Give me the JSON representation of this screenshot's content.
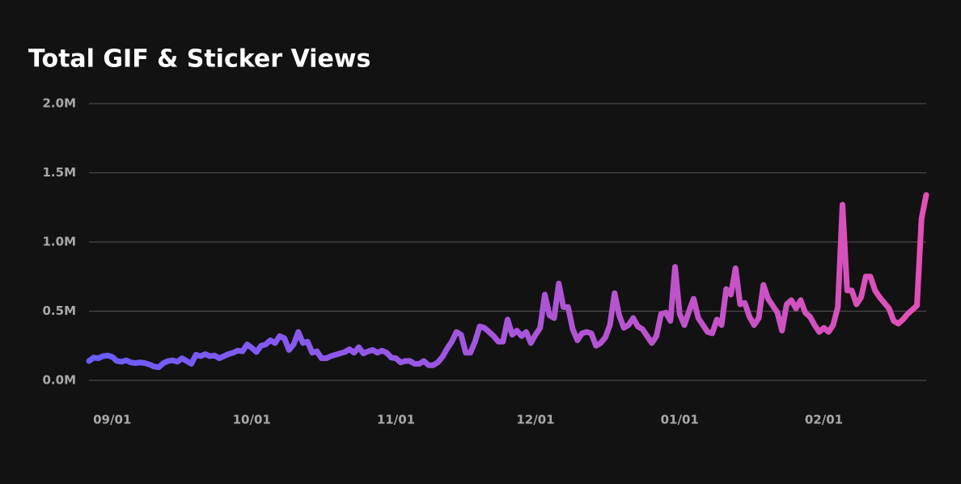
{
  "chart_data": {
    "type": "line",
    "title": "Total GIF & Sticker Views",
    "categories": [
      "08/27",
      "08/28",
      "08/29",
      "08/30",
      "08/31",
      "09/01",
      "09/02",
      "09/03",
      "09/04",
      "09/05",
      "09/06",
      "09/07",
      "09/08",
      "09/09",
      "09/10",
      "09/11",
      "09/12",
      "09/13",
      "09/14",
      "09/15",
      "09/16",
      "09/17",
      "09/18",
      "09/19",
      "09/20",
      "09/21",
      "09/22",
      "09/23",
      "09/24",
      "09/25",
      "09/26",
      "09/27",
      "09/28",
      "09/29",
      "09/30",
      "10/01",
      "10/02",
      "10/03",
      "10/04",
      "10/05",
      "10/06",
      "10/07",
      "10/08",
      "10/09",
      "10/10",
      "10/11",
      "10/12",
      "10/13",
      "10/14",
      "10/15",
      "10/16",
      "10/17",
      "10/18",
      "10/19",
      "10/20",
      "10/21",
      "10/22",
      "10/23",
      "10/24",
      "10/25",
      "10/26",
      "10/27",
      "10/28",
      "10/29",
      "10/30",
      "10/31",
      "11/01",
      "11/02",
      "11/03",
      "11/04",
      "11/05",
      "11/06",
      "11/07",
      "11/08",
      "11/09",
      "11/10",
      "11/11",
      "11/12",
      "11/13",
      "11/14",
      "11/15",
      "11/16",
      "11/17",
      "11/18",
      "11/19",
      "11/20",
      "11/21",
      "11/22",
      "11/23",
      "11/24",
      "11/25",
      "11/26",
      "11/27",
      "11/28",
      "11/29",
      "11/30",
      "12/01",
      "12/02",
      "12/03",
      "12/04",
      "12/05",
      "12/06",
      "12/07",
      "12/08",
      "12/09",
      "12/10",
      "12/11",
      "12/12",
      "12/13",
      "12/14",
      "12/15",
      "12/16",
      "12/17",
      "12/18",
      "12/19",
      "12/20",
      "12/21",
      "12/22",
      "12/23",
      "12/24",
      "12/25",
      "12/26",
      "12/27",
      "12/28",
      "12/29",
      "12/30",
      "12/31",
      "01/01",
      "01/02",
      "01/03",
      "01/04",
      "01/05",
      "01/06",
      "01/07",
      "01/08",
      "01/09",
      "01/10",
      "01/11",
      "01/12",
      "01/13",
      "01/14",
      "01/15",
      "01/16",
      "01/17",
      "01/18",
      "01/19",
      "01/20",
      "01/21",
      "01/22",
      "01/23",
      "01/24",
      "01/25",
      "01/26",
      "01/27",
      "01/28",
      "01/29",
      "01/30",
      "01/31",
      "02/01",
      "02/02",
      "02/03",
      "02/04",
      "02/05",
      "02/06",
      "02/07",
      "02/08",
      "02/09",
      "02/10",
      "02/11",
      "02/12",
      "02/13",
      "02/14",
      "02/15",
      "02/16",
      "02/17",
      "02/18",
      "02/19",
      "02/20",
      "02/21",
      "02/22",
      "02/23"
    ],
    "values": [
      140000,
      165000,
      160000,
      175000,
      180000,
      170000,
      140000,
      135000,
      145000,
      130000,
      125000,
      130000,
      125000,
      115000,
      100000,
      95000,
      125000,
      140000,
      145000,
      135000,
      160000,
      140000,
      120000,
      185000,
      175000,
      190000,
      175000,
      180000,
      160000,
      175000,
      190000,
      200000,
      215000,
      210000,
      260000,
      235000,
      205000,
      250000,
      260000,
      290000,
      270000,
      320000,
      305000,
      220000,
      260000,
      350000,
      270000,
      280000,
      200000,
      210000,
      160000,
      160000,
      175000,
      185000,
      195000,
      205000,
      225000,
      200000,
      240000,
      195000,
      210000,
      220000,
      200000,
      215000,
      200000,
      165000,
      160000,
      130000,
      140000,
      140000,
      120000,
      120000,
      140000,
      110000,
      110000,
      130000,
      170000,
      230000,
      280000,
      350000,
      330000,
      200000,
      200000,
      280000,
      390000,
      380000,
      350000,
      320000,
      280000,
      280000,
      440000,
      330000,
      360000,
      320000,
      350000,
      270000,
      330000,
      380000,
      620000,
      470000,
      450000,
      700000,
      530000,
      530000,
      370000,
      290000,
      340000,
      350000,
      340000,
      250000,
      270000,
      310000,
      400000,
      630000,
      470000,
      380000,
      400000,
      450000,
      390000,
      370000,
      320000,
      270000,
      320000,
      480000,
      490000,
      430000,
      820000,
      480000,
      400000,
      500000,
      590000,
      450000,
      400000,
      350000,
      340000,
      440000,
      400000,
      660000,
      620000,
      810000,
      550000,
      560000,
      460000,
      400000,
      450000,
      690000,
      590000,
      540000,
      490000,
      360000,
      550000,
      580000,
      520000,
      580000,
      490000,
      460000,
      400000,
      350000,
      380000,
      350000,
      400000,
      530000,
      1270000,
      650000,
      650000,
      550000,
      600000,
      750000,
      750000,
      650000,
      600000,
      560000,
      520000,
      430000,
      410000,
      440000,
      480000,
      510000,
      540000,
      1170000,
      1340000
    ],
    "gradient": [
      "#6a5cff",
      "#e44fb5"
    ],
    "ylim": [
      0,
      2000000
    ],
    "yticks": [
      {
        "value": 0,
        "label": "0.0M"
      },
      {
        "value": 500000,
        "label": "0.5M"
      },
      {
        "value": 1000000,
        "label": "1.0M"
      },
      {
        "value": 1500000,
        "label": "1.5M"
      },
      {
        "value": 2000000,
        "label": "2.0M"
      }
    ],
    "xticks": [
      "09/01",
      "10/01",
      "11/01",
      "12/01",
      "01/01",
      "02/01"
    ],
    "grid": true
  }
}
